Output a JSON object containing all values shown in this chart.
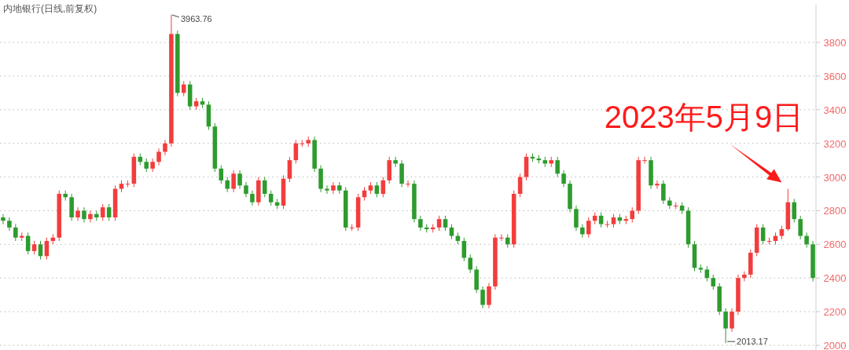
{
  "chart_data": {
    "type": "candlestick",
    "title": "内地银行(日线,前复权)",
    "categories": [
      null,
      null,
      null,
      null,
      null,
      null,
      null,
      null,
      null,
      null,
      null,
      null,
      null,
      null,
      null,
      null,
      null,
      null,
      null,
      null,
      null,
      null,
      null,
      null,
      null,
      null,
      null,
      null,
      null,
      null,
      null,
      null,
      null,
      null,
      null,
      null,
      null,
      null,
      null,
      null,
      null,
      null,
      null,
      null,
      null,
      null,
      null,
      null,
      null,
      null,
      null,
      null,
      null,
      null,
      null,
      null,
      null,
      null,
      null,
      null,
      null,
      null,
      null,
      null,
      null,
      null,
      null,
      null,
      null,
      null,
      null,
      null,
      null,
      null,
      null,
      null,
      null,
      null,
      null,
      null,
      null,
      null,
      null,
      null,
      null,
      null,
      null,
      null,
      null,
      null,
      null,
      null,
      null,
      null,
      null,
      null,
      null,
      null,
      null,
      null,
      null,
      null,
      null,
      null,
      null,
      null,
      null,
      null,
      null,
      null,
      null,
      null,
      null,
      null,
      null,
      null,
      null,
      null,
      null,
      null,
      null,
      null,
      null,
      null,
      null,
      null,
      null,
      null,
      null,
      null,
      null
    ],
    "ohlc": [
      [
        2760,
        2780,
        2720,
        2740
      ],
      [
        2740,
        2760,
        2680,
        2700
      ],
      [
        2700,
        2720,
        2620,
        2640
      ],
      [
        2640,
        2670,
        2620,
        2650
      ],
      [
        2650,
        2670,
        2540,
        2560
      ],
      [
        2560,
        2620,
        2540,
        2600
      ],
      [
        2600,
        2620,
        2510,
        2530
      ],
      [
        2530,
        2640,
        2510,
        2620
      ],
      [
        2620,
        2660,
        2600,
        2640
      ],
      [
        2640,
        2920,
        2620,
        2900
      ],
      [
        2900,
        2920,
        2860,
        2880
      ],
      [
        2880,
        2900,
        2740,
        2760
      ],
      [
        2760,
        2820,
        2740,
        2800
      ],
      [
        2800,
        2820,
        2730,
        2750
      ],
      [
        2750,
        2800,
        2730,
        2780
      ],
      [
        2780,
        2800,
        2740,
        2760
      ],
      [
        2760,
        2840,
        2740,
        2820
      ],
      [
        2820,
        2840,
        2740,
        2760
      ],
      [
        2760,
        2950,
        2740,
        2930
      ],
      [
        2930,
        2980,
        2910,
        2960
      ],
      [
        2960,
        2980,
        2940,
        2960
      ],
      [
        2960,
        3140,
        2940,
        3120
      ],
      [
        3120,
        3140,
        3070,
        3090
      ],
      [
        3090,
        3110,
        3030,
        3050
      ],
      [
        3050,
        3110,
        3030,
        3090
      ],
      [
        3090,
        3170,
        3070,
        3150
      ],
      [
        3150,
        3220,
        3130,
        3200
      ],
      [
        3200,
        3963.76,
        3180,
        3850
      ],
      [
        3850,
        3870,
        3480,
        3500
      ],
      [
        3500,
        3570,
        3480,
        3550
      ],
      [
        3550,
        3570,
        3400,
        3420
      ],
      [
        3420,
        3470,
        3400,
        3450
      ],
      [
        3450,
        3470,
        3410,
        3430
      ],
      [
        3430,
        3450,
        3280,
        3300
      ],
      [
        3300,
        3320,
        3030,
        3050
      ],
      [
        3050,
        3070,
        2960,
        2980
      ],
      [
        2980,
        3000,
        2910,
        2930
      ],
      [
        2930,
        3040,
        2910,
        3020
      ],
      [
        3020,
        3040,
        2930,
        2950
      ],
      [
        2950,
        2970,
        2880,
        2900
      ],
      [
        2900,
        2920,
        2830,
        2850
      ],
      [
        2850,
        3000,
        2830,
        2980
      ],
      [
        2980,
        3000,
        2880,
        2900
      ],
      [
        2900,
        2920,
        2830,
        2850
      ],
      [
        2850,
        2870,
        2810,
        2830
      ],
      [
        2830,
        3010,
        2810,
        2990
      ],
      [
        2990,
        3120,
        2970,
        3100
      ],
      [
        3100,
        3220,
        3080,
        3200
      ],
      [
        3200,
        3220,
        3180,
        3200
      ],
      [
        3200,
        3240,
        3180,
        3220
      ],
      [
        3220,
        3240,
        3030,
        3050
      ],
      [
        3050,
        3070,
        2910,
        2930
      ],
      [
        2930,
        2950,
        2900,
        2920
      ],
      [
        2920,
        2970,
        2900,
        2950
      ],
      [
        2950,
        2970,
        2900,
        2920
      ],
      [
        2920,
        2940,
        2680,
        2700
      ],
      [
        2700,
        2720,
        2680,
        2700
      ],
      [
        2700,
        2900,
        2680,
        2880
      ],
      [
        2880,
        2940,
        2860,
        2920
      ],
      [
        2920,
        2970,
        2900,
        2950
      ],
      [
        2950,
        2970,
        2880,
        2900
      ],
      [
        2900,
        3000,
        2880,
        2980
      ],
      [
        2980,
        3120,
        2960,
        3100
      ],
      [
        3100,
        3120,
        3060,
        3080
      ],
      [
        3080,
        3100,
        2940,
        2960
      ],
      [
        2960,
        2980,
        2940,
        2960
      ],
      [
        2960,
        2980,
        2730,
        2750
      ],
      [
        2750,
        2770,
        2680,
        2700
      ],
      [
        2700,
        2720,
        2670,
        2690
      ],
      [
        2690,
        2720,
        2670,
        2700
      ],
      [
        2700,
        2770,
        2680,
        2750
      ],
      [
        2750,
        2770,
        2680,
        2700
      ],
      [
        2700,
        2720,
        2630,
        2650
      ],
      [
        2650,
        2670,
        2600,
        2620
      ],
      [
        2620,
        2640,
        2500,
        2520
      ],
      [
        2520,
        2540,
        2430,
        2450
      ],
      [
        2450,
        2470,
        2310,
        2330
      ],
      [
        2330,
        2350,
        2220,
        2240
      ],
      [
        2240,
        2370,
        2220,
        2350
      ],
      [
        2350,
        2660,
        2330,
        2640
      ],
      [
        2640,
        2660,
        2620,
        2640
      ],
      [
        2640,
        2660,
        2580,
        2600
      ],
      [
        2600,
        2920,
        2580,
        2900
      ],
      [
        2900,
        3020,
        2880,
        3000
      ],
      [
        3000,
        3140,
        2980,
        3120
      ],
      [
        3120,
        3140,
        3090,
        3110
      ],
      [
        3110,
        3130,
        3080,
        3100
      ],
      [
        3100,
        3120,
        3060,
        3080
      ],
      [
        3080,
        3120,
        3060,
        3100
      ],
      [
        3100,
        3120,
        3000,
        3020
      ],
      [
        3020,
        3040,
        2940,
        2960
      ],
      [
        2960,
        2980,
        2790,
        2810
      ],
      [
        2810,
        2830,
        2680,
        2700
      ],
      [
        2700,
        2720,
        2640,
        2660
      ],
      [
        2660,
        2760,
        2640,
        2740
      ],
      [
        2740,
        2790,
        2720,
        2770
      ],
      [
        2770,
        2790,
        2700,
        2720
      ],
      [
        2720,
        2740,
        2700,
        2720
      ],
      [
        2720,
        2780,
        2700,
        2760
      ],
      [
        2760,
        2780,
        2720,
        2740
      ],
      [
        2740,
        2770,
        2720,
        2750
      ],
      [
        2750,
        2820,
        2730,
        2800
      ],
      [
        2800,
        3120,
        2780,
        3100
      ],
      [
        3100,
        3120,
        3080,
        3100
      ],
      [
        3100,
        3120,
        2930,
        2950
      ],
      [
        2950,
        2980,
        2930,
        2960
      ],
      [
        2960,
        2980,
        2840,
        2860
      ],
      [
        2860,
        2880,
        2810,
        2830
      ],
      [
        2830,
        2850,
        2810,
        2830
      ],
      [
        2830,
        2850,
        2780,
        2800
      ],
      [
        2800,
        2820,
        2580,
        2600
      ],
      [
        2600,
        2620,
        2440,
        2460
      ],
      [
        2460,
        2480,
        2430,
        2450
      ],
      [
        2450,
        2470,
        2380,
        2400
      ],
      [
        2400,
        2420,
        2330,
        2350
      ],
      [
        2350,
        2370,
        2180,
        2200
      ],
      [
        2200,
        2220,
        2013.17,
        2100
      ],
      [
        2100,
        2220,
        2080,
        2200
      ],
      [
        2200,
        2420,
        2180,
        2400
      ],
      [
        2400,
        2440,
        2380,
        2420
      ],
      [
        2420,
        2570,
        2400,
        2550
      ],
      [
        2550,
        2720,
        2530,
        2700
      ],
      [
        2700,
        2720,
        2600,
        2620
      ],
      [
        2620,
        2640,
        2600,
        2620
      ],
      [
        2620,
        2670,
        2600,
        2650
      ],
      [
        2650,
        2710,
        2630,
        2690
      ],
      [
        2690,
        2930,
        2680,
        2850
      ],
      [
        2850,
        2870,
        2730,
        2750
      ],
      [
        2750,
        2770,
        2630,
        2650
      ],
      [
        2650,
        2670,
        2580,
        2600
      ],
      [
        2600,
        2620,
        2380,
        2400
      ]
    ],
    "colors": [
      "#2e9b2e",
      "#2e9b2e",
      "#2e9b2e",
      "#f23d3d",
      "#2e9b2e",
      "#f23d3d",
      "#2e9b2e",
      "#f23d3d",
      "#f23d3d",
      "#f23d3d",
      "#2e9b2e",
      "#2e9b2e",
      "#f23d3d",
      "#2e9b2e",
      "#f23d3d",
      "#2e9b2e",
      "#f23d3d",
      "#2e9b2e",
      "#f23d3d",
      "#f23d3d",
      "#f23d3d",
      "#f23d3d",
      "#2e9b2e",
      "#2e9b2e",
      "#f23d3d",
      "#f23d3d",
      "#f23d3d",
      "#f23d3d",
      "#2e9b2e",
      "#f23d3d",
      "#2e9b2e",
      "#f23d3d",
      "#2e9b2e",
      "#2e9b2e",
      "#2e9b2e",
      "#2e9b2e",
      "#2e9b2e",
      "#f23d3d",
      "#2e9b2e",
      "#2e9b2e",
      "#2e9b2e",
      "#f23d3d",
      "#2e9b2e",
      "#2e9b2e",
      "#2e9b2e",
      "#f23d3d",
      "#f23d3d",
      "#f23d3d",
      "#f23d3d",
      "#f23d3d",
      "#2e9b2e",
      "#2e9b2e",
      "#2e9b2e",
      "#f23d3d",
      "#2e9b2e",
      "#2e9b2e",
      "#f23d3d",
      "#f23d3d",
      "#f23d3d",
      "#f23d3d",
      "#2e9b2e",
      "#f23d3d",
      "#f23d3d",
      "#2e9b2e",
      "#2e9b2e",
      "#f23d3d",
      "#2e9b2e",
      "#2e9b2e",
      "#2e9b2e",
      "#f23d3d",
      "#f23d3d",
      "#2e9b2e",
      "#2e9b2e",
      "#2e9b2e",
      "#2e9b2e",
      "#2e9b2e",
      "#2e9b2e",
      "#2e9b2e",
      "#f23d3d",
      "#f23d3d",
      "#f23d3d",
      "#2e9b2e",
      "#f23d3d",
      "#f23d3d",
      "#f23d3d",
      "#2e9b2e",
      "#2e9b2e",
      "#2e9b2e",
      "#f23d3d",
      "#2e9b2e",
      "#2e9b2e",
      "#2e9b2e",
      "#2e9b2e",
      "#2e9b2e",
      "#f23d3d",
      "#f23d3d",
      "#2e9b2e",
      "#f23d3d",
      "#f23d3d",
      "#2e9b2e",
      "#f23d3d",
      "#f23d3d",
      "#f23d3d",
      "#f23d3d",
      "#2e9b2e",
      "#f23d3d",
      "#2e9b2e",
      "#2e9b2e",
      "#f23d3d",
      "#2e9b2e",
      "#2e9b2e",
      "#2e9b2e",
      "#2e9b2e",
      "#2e9b2e",
      "#2e9b2e",
      "#2e9b2e",
      "#2e9b2e",
      "#f23d3d",
      "#f23d3d",
      "#f23d3d",
      "#f23d3d",
      "#f23d3d",
      "#2e9b2e",
      "#f23d3d",
      "#f23d3d",
      "#f23d3d",
      "#f23d3d",
      "#2e9b2e",
      "#2e9b2e",
      "#2e9b2e",
      "#2e9b2e"
    ],
    "ylim": [
      1972,
      4024
    ],
    "yticks": [
      2000,
      2200,
      2400,
      2600,
      2800,
      3000,
      3200,
      3400,
      3600,
      3800
    ],
    "grid": "y",
    "tick_labels": "y",
    "annotations": [
      "3963.76",
      "2013.17",
      "2023年5月9日"
    ]
  }
}
